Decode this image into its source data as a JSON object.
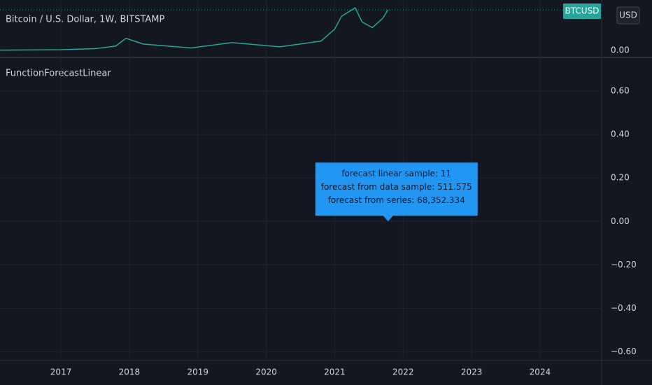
{
  "header": {
    "title": "Bitcoin / U.S. Dollar, 1W, BITSTAMP",
    "symbol": "BTCUSD",
    "currency": "USD"
  },
  "chart_data": [
    {
      "type": "line",
      "name": "price-pane",
      "color": "#26a69a",
      "x": [
        2016.1,
        2016.5,
        2017.0,
        2017.5,
        2017.8,
        2017.95,
        2018.2,
        2018.5,
        2018.9,
        2019.5,
        2020.2,
        2020.8,
        2021.0,
        2021.1,
        2021.3,
        2021.4,
        2021.55,
        2021.7,
        2021.78
      ],
      "values": [
        400,
        650,
        1000,
        2500,
        6000,
        17000,
        9000,
        6500,
        3500,
        11000,
        5000,
        13000,
        30000,
        48000,
        60000,
        40000,
        32000,
        45000,
        57000
      ],
      "xlim": [
        2016.11,
        2024.9
      ],
      "xticks": [
        2017,
        2018,
        2019,
        2020,
        2021,
        2022,
        2023,
        2024
      ],
      "ylim": [
        0,
        66000
      ],
      "yticks": [
        {
          "value": 0,
          "label": "0.00"
        }
      ]
    },
    {
      "type": "annotation",
      "title": "FunctionForecastLinear",
      "xlim": [
        2016.11,
        2024.9
      ],
      "ylim": [
        -0.64,
        0.745
      ],
      "yticks": [
        {
          "value": 0.6,
          "label": "0.60"
        },
        {
          "value": 0.4,
          "label": "0.40"
        },
        {
          "value": 0.2,
          "label": "0.20"
        },
        {
          "value": 0,
          "label": "0.00"
        },
        {
          "value": -0.2,
          "label": "−0.20"
        },
        {
          "value": -0.4,
          "label": "−0.40"
        },
        {
          "value": -0.6,
          "label": "−0.60"
        }
      ],
      "label": {
        "x": 2021.78,
        "y": 0,
        "color": "#2196f3",
        "lines": [
          "forecast linear sample: 11",
          "forecast from data sample: 511.575",
          "forecast from series: 68,352.334"
        ]
      }
    }
  ]
}
